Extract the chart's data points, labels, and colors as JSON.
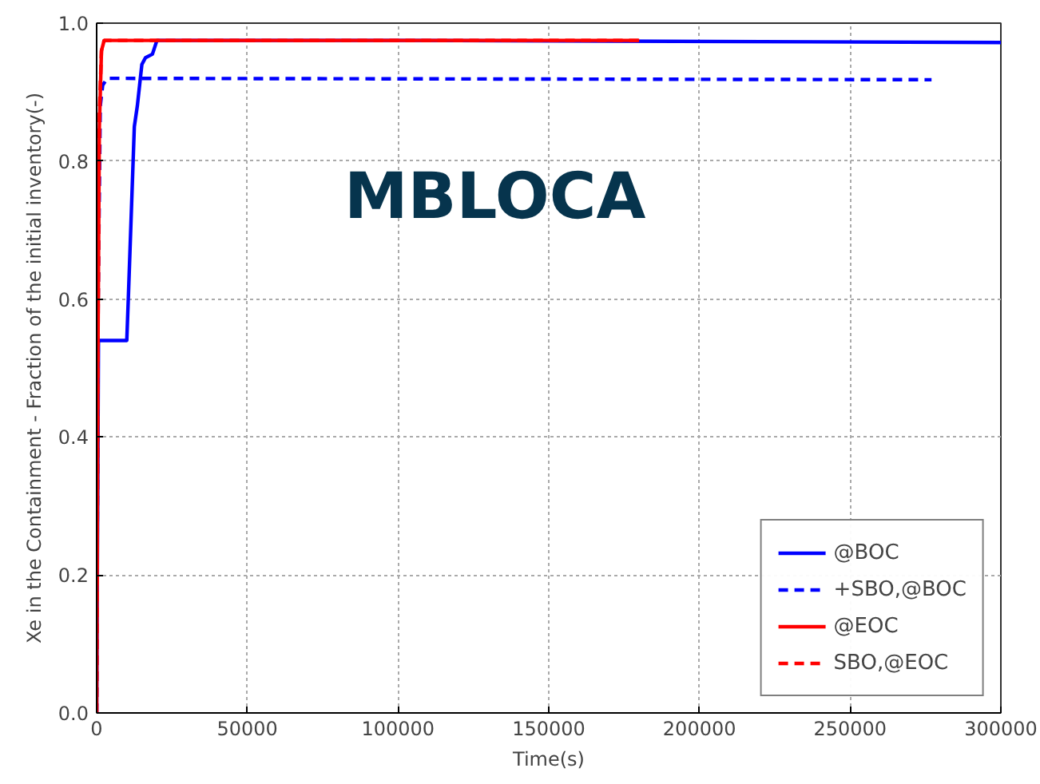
{
  "chart_data": {
    "type": "line",
    "xlabel": "Time(s)",
    "ylabel": "Xe in the Containment - Fraction of the initial inventory(-)",
    "annotations": [
      "MBLOCA"
    ],
    "xlim": [
      0,
      300000
    ],
    "ylim": [
      0.0,
      1.0
    ],
    "xticks": [
      0,
      50000,
      100000,
      150000,
      200000,
      250000,
      300000
    ],
    "yticks": [
      {
        "value": 0,
        "label": "0.0"
      },
      0.2,
      0.4,
      0.6,
      0.8,
      {
        "value": 1,
        "label": "1.0"
      }
    ],
    "grid": true,
    "legend": "bottom right",
    "series": [
      {
        "name": "@BOC",
        "color": "#0000ff",
        "line_style": "solid",
        "x": [
          0,
          600,
          10000,
          10500,
          12500,
          13500,
          15000,
          16200,
          18500,
          20000,
          100000,
          300000
        ],
        "values": [
          0,
          0.54,
          0.54,
          0.6,
          0.85,
          0.88,
          0.94,
          0.95,
          0.955,
          0.975,
          0.975,
          0.972
        ]
      },
      {
        "name": "+SBO,@BOC",
        "color": "#0000ff",
        "line_style": "dashed",
        "x": [
          0,
          500,
          1200,
          2000,
          3500,
          277000
        ],
        "values": [
          0,
          0.6,
          0.88,
          0.91,
          0.92,
          0.918
        ]
      },
      {
        "name": "@EOC",
        "color": "#ff0000",
        "line_style": "solid",
        "x": [
          0,
          400,
          900,
          1600,
          2500,
          180000
        ],
        "values": [
          0,
          0.5,
          0.85,
          0.96,
          0.975,
          0.975
        ]
      },
      {
        "name": "SBO,@EOC",
        "color": "#ff0000",
        "line_style": "dashed",
        "x": [
          0,
          400,
          900,
          1600,
          2500,
          180000
        ],
        "values": [
          0,
          0.52,
          0.87,
          0.96,
          0.975,
          0.975
        ]
      }
    ]
  }
}
